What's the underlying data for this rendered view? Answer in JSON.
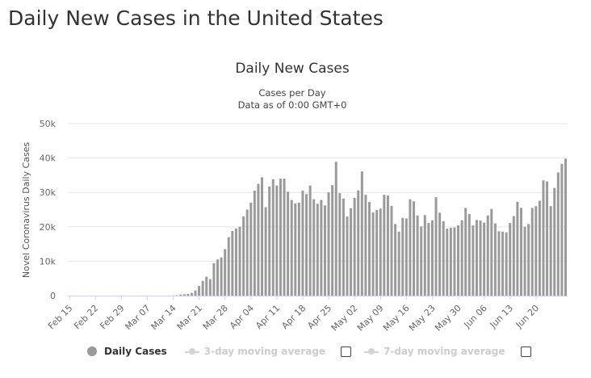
{
  "page": {
    "title": "Daily New Cases in the United States"
  },
  "legend": {
    "daily": "Daily Cases",
    "ma3": "3-day moving average",
    "ma7": "7-day moving average"
  },
  "colors": {
    "bar": "#9a9a9a",
    "grid": "#e6e6e6",
    "axis": "#ccd6eb",
    "legend_off": "#cccccc"
  },
  "chart_data": {
    "type": "bar",
    "title": "Daily New Cases",
    "subtitle": [
      "Cases per Day",
      "Data as of 0:00 GMT+0"
    ],
    "ylabel": "Novel Coronavirus Daily Cases",
    "xlabel": "",
    "ylim": [
      0,
      50000
    ],
    "yticks": [
      0,
      10000,
      20000,
      30000,
      40000,
      50000
    ],
    "ytick_labels": [
      "0",
      "10k",
      "20k",
      "30k",
      "40k",
      "50k"
    ],
    "xtick_labels": [
      "Feb 15",
      "Feb 22",
      "Feb 29",
      "Mar 07",
      "Mar 14",
      "Mar 21",
      "Mar 28",
      "Apr 04",
      "Apr 11",
      "Apr 18",
      "Apr 25",
      "May 02",
      "May 09",
      "May 16",
      "May 23",
      "May 30",
      "Jun 06",
      "Jun 13",
      "Jun 20"
    ],
    "x_start": "Feb 15",
    "x_end": "Jun 24",
    "grid": true,
    "legend_position": "bottom",
    "series": [
      {
        "name": "Daily Cases",
        "visible": true,
        "values": [
          0,
          0,
          0,
          0,
          0,
          0,
          0,
          0,
          0,
          0,
          0,
          0,
          0,
          0,
          0,
          0,
          0,
          0,
          0,
          0,
          0,
          0,
          0,
          0,
          0,
          0,
          0,
          0,
          50,
          100,
          300,
          400,
          500,
          800,
          1500,
          2800,
          4300,
          5500,
          4800,
          9400,
          10500,
          11100,
          13500,
          17000,
          18800,
          19500,
          20000,
          23000,
          25000,
          27000,
          30500,
          32500,
          34400,
          25700,
          31700,
          33800,
          32000,
          34000,
          34000,
          30200,
          27800,
          26800,
          27000,
          30500,
          29500,
          32000,
          28000,
          26700,
          27800,
          26200,
          30000,
          32100,
          38900,
          29800,
          28200,
          23000,
          25400,
          28400,
          30600,
          36100,
          29300,
          27200,
          24200,
          24900,
          25300,
          29300,
          29100,
          26100,
          20800,
          18600,
          22600,
          22400,
          28000,
          27400,
          23300,
          20100,
          23400,
          21100,
          21900,
          28600,
          24100,
          21600,
          19500,
          19700,
          19800,
          20400,
          21900,
          25500,
          23700,
          20400,
          22000,
          21800,
          21200,
          23300,
          25200,
          21000,
          18700,
          18600,
          18400,
          21100,
          23100,
          27300,
          25500,
          20000,
          20800,
          25500,
          26000,
          27600,
          33500,
          33200,
          26000,
          31300,
          35800,
          38300,
          39800
        ]
      },
      {
        "name": "3-day moving average",
        "visible": false
      },
      {
        "name": "7-day moving average",
        "visible": false
      }
    ]
  }
}
